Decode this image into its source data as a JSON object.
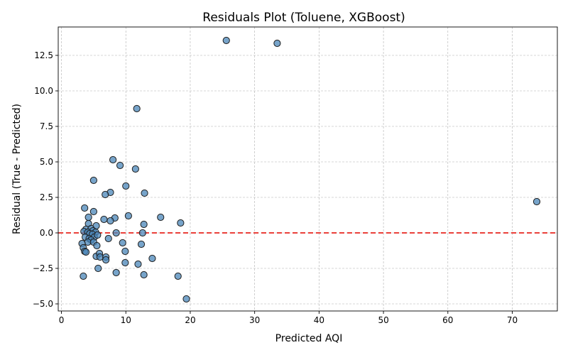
{
  "chart_data": {
    "type": "scatter",
    "title": "Residuals Plot (Toluene, XGBoost)",
    "xlabel": "Predicted AQI",
    "ylabel": "Residual (True - Predicted)",
    "xlim": [
      -0.5,
      77
    ],
    "ylim": [
      -5.5,
      14.5
    ],
    "xticks": [
      0,
      10,
      20,
      30,
      40,
      50,
      60,
      70
    ],
    "yticks": [
      -5.0,
      -2.5,
      0.0,
      2.5,
      5.0,
      7.5,
      10.0,
      12.5
    ],
    "ytick_labels": [
      "−5.0",
      "−2.5",
      "0.0",
      "2.5",
      "5.0",
      "7.5",
      "10.0",
      "12.5"
    ],
    "grid": true,
    "reference_line": {
      "y": 0,
      "color": "#e8251f",
      "style": "dashed"
    },
    "marker_color": "#4a86b8",
    "points": [
      {
        "x": 25.6,
        "y": 13.55
      },
      {
        "x": 33.5,
        "y": 13.35
      },
      {
        "x": 11.7,
        "y": 8.75
      },
      {
        "x": 8.0,
        "y": 5.15
      },
      {
        "x": 9.1,
        "y": 4.75
      },
      {
        "x": 11.5,
        "y": 4.5
      },
      {
        "x": 5.0,
        "y": 3.7
      },
      {
        "x": 10.0,
        "y": 3.3
      },
      {
        "x": 7.6,
        "y": 2.85
      },
      {
        "x": 6.8,
        "y": 2.7
      },
      {
        "x": 12.9,
        "y": 2.8
      },
      {
        "x": 73.8,
        "y": 2.2
      },
      {
        "x": 3.6,
        "y": 1.75
      },
      {
        "x": 5.0,
        "y": 1.5
      },
      {
        "x": 4.2,
        "y": 1.1
      },
      {
        "x": 10.4,
        "y": 1.2
      },
      {
        "x": 15.4,
        "y": 1.1
      },
      {
        "x": 8.3,
        "y": 1.05
      },
      {
        "x": 6.6,
        "y": 0.95
      },
      {
        "x": 7.6,
        "y": 0.85
      },
      {
        "x": 18.5,
        "y": 0.7
      },
      {
        "x": 12.8,
        "y": 0.6
      },
      {
        "x": 4.2,
        "y": 0.65
      },
      {
        "x": 5.4,
        "y": 0.5
      },
      {
        "x": 3.8,
        "y": 0.25
      },
      {
        "x": 4.6,
        "y": 0.3
      },
      {
        "x": 3.5,
        "y": 0.1
      },
      {
        "x": 4.1,
        "y": 0.05
      },
      {
        "x": 4.9,
        "y": 0.15
      },
      {
        "x": 5.3,
        "y": 0.05
      },
      {
        "x": 4.4,
        "y": -0.05
      },
      {
        "x": 4.8,
        "y": -0.1
      },
      {
        "x": 3.7,
        "y": -0.3
      },
      {
        "x": 4.3,
        "y": -0.4
      },
      {
        "x": 5.1,
        "y": -0.3
      },
      {
        "x": 5.6,
        "y": -0.15
      },
      {
        "x": 4.6,
        "y": -0.5
      },
      {
        "x": 4.1,
        "y": -0.65
      },
      {
        "x": 5.0,
        "y": -0.65
      },
      {
        "x": 5.5,
        "y": -0.9
      },
      {
        "x": 8.5,
        "y": 0.0
      },
      {
        "x": 12.6,
        "y": 0.0
      },
      {
        "x": 7.3,
        "y": -0.4
      },
      {
        "x": 9.5,
        "y": -0.7
      },
      {
        "x": 12.4,
        "y": -0.8
      },
      {
        "x": 3.2,
        "y": -0.75
      },
      {
        "x": 3.4,
        "y": -1.05
      },
      {
        "x": 3.6,
        "y": -1.3
      },
      {
        "x": 3.8,
        "y": -1.35
      },
      {
        "x": 9.9,
        "y": -1.3
      },
      {
        "x": 5.4,
        "y": -1.65
      },
      {
        "x": 5.9,
        "y": -1.45
      },
      {
        "x": 6.0,
        "y": -1.7
      },
      {
        "x": 6.9,
        "y": -1.7
      },
      {
        "x": 6.9,
        "y": -1.9
      },
      {
        "x": 14.1,
        "y": -1.8
      },
      {
        "x": 9.9,
        "y": -2.1
      },
      {
        "x": 11.9,
        "y": -2.2
      },
      {
        "x": 5.7,
        "y": -2.5
      },
      {
        "x": 8.5,
        "y": -2.8
      },
      {
        "x": 12.8,
        "y": -2.95
      },
      {
        "x": 3.4,
        "y": -3.05
      },
      {
        "x": 18.1,
        "y": -3.05
      },
      {
        "x": 19.4,
        "y": -4.65
      }
    ]
  }
}
